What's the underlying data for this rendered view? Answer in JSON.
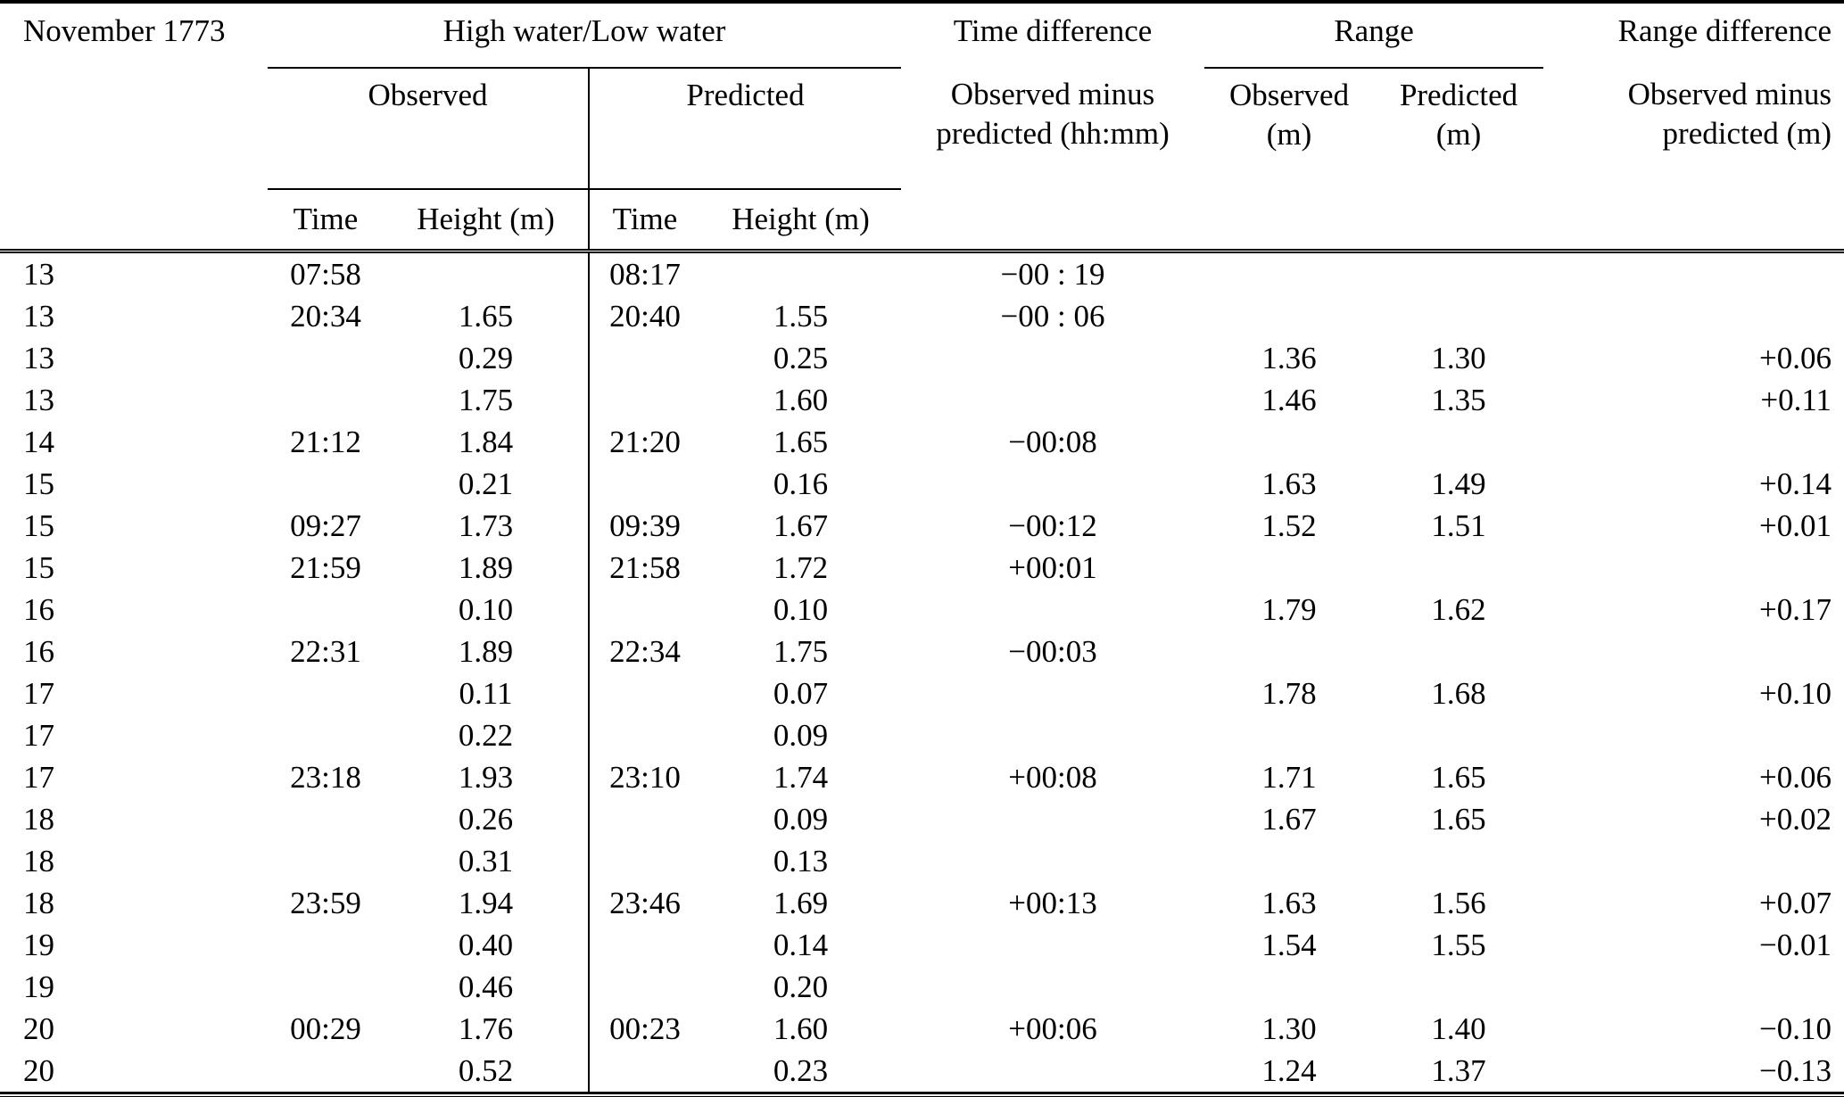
{
  "table": {
    "header": {
      "month": "November 1773",
      "high_low_water": "High water/Low water",
      "observed": "Observed",
      "predicted": "Predicted",
      "time": "Time",
      "height_m": "Height (m)",
      "time_difference": "Time difference",
      "time_difference_sub1": "Observed minus",
      "time_difference_sub2": "predicted (hh:mm)",
      "range": "Range",
      "range_observed_1": "Observed",
      "range_observed_2": "(m)",
      "range_predicted_1": "Predicted",
      "range_predicted_2": "(m)",
      "range_difference": "Range difference",
      "range_difference_sub1": "Observed minus",
      "range_difference_sub2": "predicted (m)"
    },
    "column_keys": [
      "day",
      "observed_time",
      "observed_height_m",
      "predicted_time",
      "predicted_height_m",
      "time_difference_hhmm",
      "range_observed_m",
      "range_predicted_m",
      "range_difference_m"
    ],
    "rows": [
      [
        "13",
        "07:58",
        "",
        "08:17",
        "",
        "−00 : 19",
        "",
        "",
        ""
      ],
      [
        "13",
        "20:34",
        "1.65",
        "20:40",
        "1.55",
        "−00 : 06",
        "",
        "",
        ""
      ],
      [
        "13",
        "",
        "0.29",
        "",
        "0.25",
        "",
        "1.36",
        "1.30",
        "+0.06"
      ],
      [
        "13",
        "",
        "1.75",
        "",
        "1.60",
        "",
        "1.46",
        "1.35",
        "+0.11"
      ],
      [
        "14",
        "21:12",
        "1.84",
        "21:20",
        "1.65",
        "−00:08",
        "",
        "",
        ""
      ],
      [
        "15",
        "",
        "0.21",
        "",
        "0.16",
        "",
        "1.63",
        "1.49",
        "+0.14"
      ],
      [
        "15",
        "09:27",
        "1.73",
        "09:39",
        "1.67",
        "−00:12",
        "1.52",
        "1.51",
        "+0.01"
      ],
      [
        "15",
        "21:59",
        "1.89",
        "21:58",
        "1.72",
        "+00:01",
        "",
        "",
        ""
      ],
      [
        "16",
        "",
        "0.10",
        "",
        "0.10",
        "",
        "1.79",
        "1.62",
        "+0.17"
      ],
      [
        "16",
        "22:31",
        "1.89",
        "22:34",
        "1.75",
        "−00:03",
        "",
        "",
        ""
      ],
      [
        "17",
        "",
        "0.11",
        "",
        "0.07",
        "",
        "1.78",
        "1.68",
        "+0.10"
      ],
      [
        "17",
        "",
        "0.22",
        "",
        "0.09",
        "",
        "",
        "",
        ""
      ],
      [
        "17",
        "23:18",
        "1.93",
        "23:10",
        "1.74",
        "+00:08",
        "1.71",
        "1.65",
        "+0.06"
      ],
      [
        "18",
        "",
        "0.26",
        "",
        "0.09",
        "",
        "1.67",
        "1.65",
        "+0.02"
      ],
      [
        "18",
        "",
        "0.31",
        "",
        "0.13",
        "",
        "",
        "",
        ""
      ],
      [
        "18",
        "23:59",
        "1.94",
        "23:46",
        "1.69",
        "+00:13",
        "1.63",
        "1.56",
        "+0.07"
      ],
      [
        "19",
        "",
        "0.40",
        "",
        "0.14",
        "",
        "1.54",
        "1.55",
        "−0.01"
      ],
      [
        "19",
        "",
        "0.46",
        "",
        "0.20",
        "",
        "",
        "",
        ""
      ],
      [
        "20",
        "00:29",
        "1.76",
        "00:23",
        "1.60",
        "+00:06",
        "1.30",
        "1.40",
        "−0.10"
      ],
      [
        "20",
        "",
        "0.52",
        "",
        "0.23",
        "",
        "1.24",
        "1.37",
        "−0.13"
      ]
    ]
  }
}
